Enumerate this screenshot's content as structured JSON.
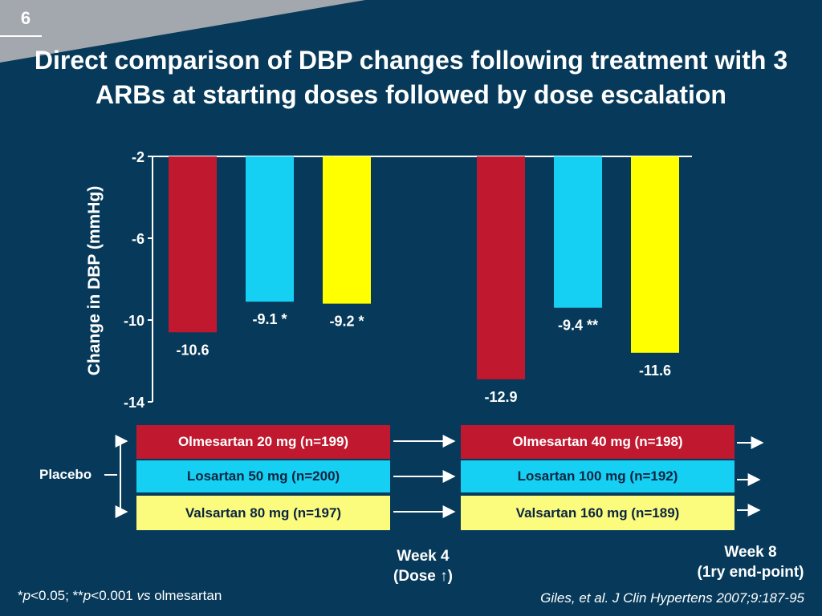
{
  "slide_number": "6",
  "title": "Direct comparison of DBP changes following treatment with 3 ARBs at starting doses followed by dose escalation",
  "chart_data": {
    "type": "bar",
    "ylabel": "Change in DBP (mmHg)",
    "ylim": [
      -14,
      -2
    ],
    "yticks": [
      -2,
      -6,
      -10,
      -14
    ],
    "ytick_labels": [
      "-2",
      "-6",
      "-10",
      "-14"
    ],
    "groups": [
      "Week 4",
      "Week 8"
    ],
    "series": [
      {
        "name": "Olmesartan",
        "values": [
          -10.6,
          -12.9
        ],
        "labels": [
          "-10.6",
          "-12.9"
        ],
        "color": "#c0182e"
      },
      {
        "name": "Losartan",
        "values": [
          -9.1,
          -9.4
        ],
        "labels": [
          "-9.1 *",
          "-9.4 **"
        ],
        "color": "#16d0f4"
      },
      {
        "name": "Valsartan",
        "values": [
          -9.2,
          -11.6
        ],
        "labels": [
          "-9.2 *",
          "-11.6"
        ],
        "color": "#ffff00"
      }
    ]
  },
  "legend": {
    "placebo": "Placebo",
    "phase1": {
      "olmesartan": "Olmesartan 20 mg (n=199)",
      "losartan": "Losartan 50 mg (n=200)",
      "valsartan": "Valsartan 80 mg (n=197)"
    },
    "phase2": {
      "olmesartan": "Olmesartan 40 mg (n=198)",
      "losartan": "Losartan 100 mg (n=192)",
      "valsartan": "Valsartan 160 mg (n=189)"
    },
    "colors": {
      "olmesartan": "#c0182e",
      "losartan": "#16d0f4",
      "valsartan": "#fbfb7e"
    }
  },
  "week4": {
    "line1": "Week 4",
    "line2_prefix": "(Dose ",
    "line2_arrow": "↑",
    "line2_suffix": ")"
  },
  "week8": {
    "line1": "Week 8",
    "line2": "(1ry end-point)"
  },
  "footnote": {
    "star": "*",
    "p1": "p",
    "t1": "<0.05; **",
    "p2": "p",
    "t2": "<0.001 ",
    "vs": "vs",
    "t3": " olmesartan"
  },
  "citation": "Giles, et al. J Clin Hypertens 2007;9:187-95"
}
